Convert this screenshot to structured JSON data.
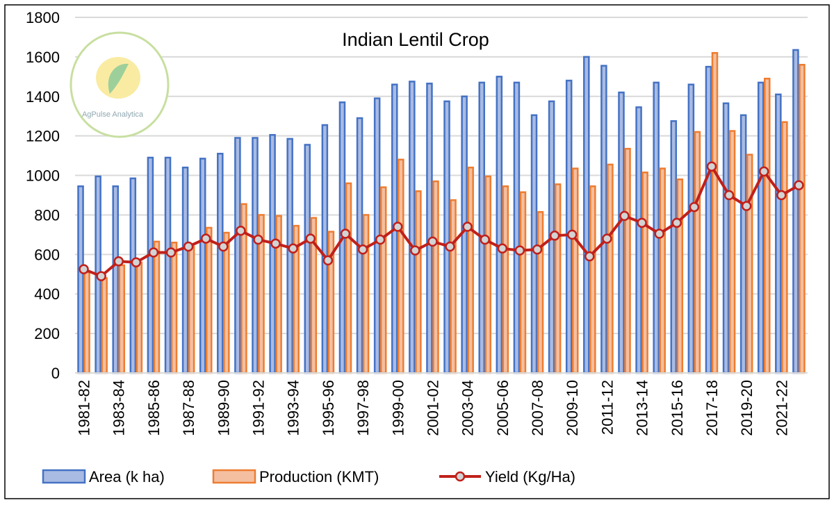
{
  "chart_data": {
    "type": "bar",
    "title": "Indian Lentil Crop",
    "xlabel": "",
    "ylabel": "",
    "ylim": [
      0,
      1800
    ],
    "yticks": [
      0,
      200,
      400,
      600,
      800,
      1000,
      1200,
      1400,
      1600,
      1800
    ],
    "grid": true,
    "legend_position": "bottom",
    "categories": [
      "1981-82",
      "1982-83",
      "1983-84",
      "1984-85",
      "1985-86",
      "1986-87",
      "1987-88",
      "1988-89",
      "1989-90",
      "1990-91",
      "1991-92",
      "1992-93",
      "1993-94",
      "1994-95",
      "1995-96",
      "1996-97",
      "1997-98",
      "1998-99",
      "1999-00",
      "2000-01",
      "2001-02",
      "2002-03",
      "2003-04",
      "2004-05",
      "2005-06",
      "2006-07",
      "2007-08",
      "2008-09",
      "2009-10",
      "2010-11",
      "2011-12",
      "2012-13",
      "2013-14",
      "2014-15",
      "2015-16",
      "2016-17",
      "2017-18",
      "2018-19",
      "2019-20",
      "2020-21",
      "2021-22",
      "2022-23"
    ],
    "visible_tick_labels": [
      "1981-82",
      "1983-84",
      "1985-86",
      "1987-88",
      "1989-90",
      "1991-92",
      "1993-94",
      "1995-96",
      "1997-98",
      "1999-00",
      "2001-02",
      "2003-04",
      "2005-06",
      "2007-08",
      "2009-10",
      "2011-12",
      "2013-14",
      "2015-16",
      "2017-18",
      "2019-20",
      "2021-22"
    ],
    "series": [
      {
        "name": "Area (k ha)",
        "type": "bar",
        "color": "#4472C4",
        "fill": "#A9BBE3",
        "values": [
          945,
          995,
          945,
          985,
          1090,
          1090,
          1040,
          1085,
          1110,
          1190,
          1190,
          1205,
          1185,
          1155,
          1255,
          1370,
          1290,
          1390,
          1460,
          1475,
          1465,
          1375,
          1400,
          1470,
          1500,
          1470,
          1305,
          1375,
          1480,
          1600,
          1555,
          1420,
          1345,
          1470,
          1275,
          1460,
          1550,
          1365,
          1305,
          1470,
          1410,
          1635
        ]
      },
      {
        "name": "Production (KMT)",
        "type": "bar",
        "color": "#ED7D31",
        "fill": "#F4BFA0",
        "values": [
          510,
          480,
          545,
          560,
          665,
          660,
          640,
          735,
          710,
          855,
          800,
          795,
          745,
          785,
          715,
          960,
          800,
          940,
          1080,
          920,
          970,
          875,
          1040,
          995,
          945,
          915,
          815,
          955,
          1035,
          945,
          1055,
          1135,
          1015,
          1035,
          980,
          1220,
          1620,
          1225,
          1105,
          1490,
          1270,
          1560
        ]
      },
      {
        "name": "Yield (Kg/Ha)",
        "type": "line",
        "color": "#C0201A",
        "marker_fill": "#D3D3D3",
        "values": [
          525,
          490,
          565,
          560,
          610,
          610,
          640,
          680,
          640,
          720,
          675,
          655,
          630,
          680,
          570,
          705,
          625,
          675,
          740,
          620,
          665,
          640,
          740,
          675,
          630,
          620,
          625,
          695,
          700,
          590,
          680,
          795,
          760,
          705,
          760,
          840,
          1045,
          900,
          845,
          1020,
          900,
          950
        ]
      }
    ]
  },
  "logo": {
    "text": "AgPulse Analytica"
  }
}
